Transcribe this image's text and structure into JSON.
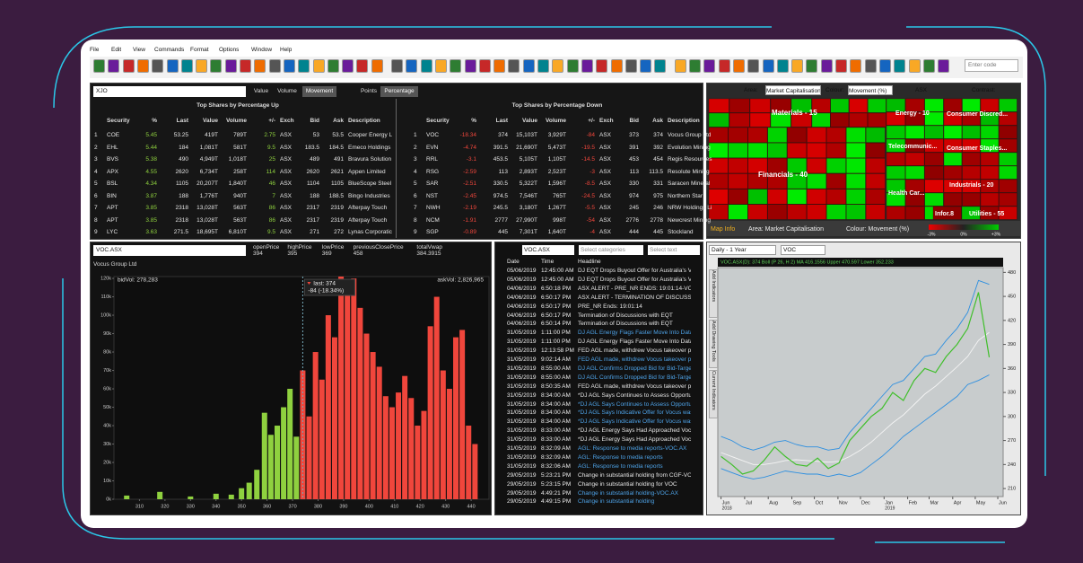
{
  "menu": [
    "File",
    "Edit",
    "View",
    "Commands",
    "Format",
    "Options",
    "Window",
    "Help"
  ],
  "toolbar": {
    "search_placeholder": "Enter code"
  },
  "watchlist": {
    "code": "XJO",
    "sort_tabs": [
      "Value",
      "Volume",
      "Movement"
    ],
    "mode_tabs": [
      "Points",
      "Percentage"
    ],
    "columns": [
      "Security",
      "%",
      "Last",
      "Value",
      "Volume",
      "+/-",
      "Exch",
      "Bid",
      "Ask",
      "Description"
    ],
    "up": {
      "title": "Top Shares by Percentage Up",
      "color": "#8fd13f",
      "rows": [
        [
          1,
          "COE",
          5.45,
          53.25,
          "419T",
          "789T",
          2.75,
          "ASX",
          53,
          53.5,
          "Cooper Energy L"
        ],
        [
          2,
          "EHL",
          5.44,
          184,
          "1,081T",
          "581T",
          9.5,
          "ASX",
          183.5,
          184.5,
          "Emeco Holdings"
        ],
        [
          3,
          "BVS",
          5.38,
          490,
          "4,949T",
          "1,018T",
          25,
          "ASX",
          489,
          491,
          "Bravura Solution"
        ],
        [
          4,
          "APX",
          4.55,
          2620,
          "6,734T",
          "258T",
          114,
          "ASX",
          2620,
          2621,
          "Appen Limited"
        ],
        [
          5,
          "BSL",
          4.34,
          1105,
          "20,207T",
          "1,840T",
          46,
          "ASX",
          1104,
          1105,
          "BlueScope Steel"
        ],
        [
          6,
          "BIN",
          3.87,
          188,
          "1,776T",
          "940T",
          7,
          "ASX",
          188,
          188.5,
          "Bingo Industries"
        ],
        [
          7,
          "APT",
          3.85,
          2318,
          "13,028T",
          "563T",
          86,
          "ASX",
          2317,
          2319,
          "Afterpay Touch"
        ],
        [
          8,
          "APT",
          3.85,
          2318,
          "13,028T",
          "563T",
          86,
          "ASX",
          2317,
          2319,
          "Afterpay Touch"
        ],
        [
          9,
          "LYC",
          3.63,
          271.5,
          "18,695T",
          "6,810T",
          9.5,
          "ASX",
          271,
          272,
          "Lynas Corporatic"
        ]
      ]
    },
    "down": {
      "title": "Top Shares by Percentage Down",
      "color": "#f0463c",
      "rows": [
        [
          1,
          "VOC",
          -18.34,
          374,
          "15,103T",
          "3,929T",
          -84,
          "ASX",
          373,
          374,
          "Vocus Group Ltd"
        ],
        [
          2,
          "EVN",
          -4.74,
          391.5,
          "21,690T",
          "5,473T",
          -19.5,
          "ASX",
          391,
          392,
          "Evolution Mining"
        ],
        [
          3,
          "RRL",
          -3.1,
          453.5,
          "5,105T",
          "1,105T",
          -14.5,
          "ASX",
          453,
          454,
          "Regis Resources"
        ],
        [
          4,
          "RSG",
          -2.59,
          113,
          "2,893T",
          "2,523T",
          -3,
          "ASX",
          113,
          113.5,
          "Resolute Mining"
        ],
        [
          5,
          "SAR",
          -2.51,
          330.5,
          "5,322T",
          "1,596T",
          -8.5,
          "ASX",
          330,
          331,
          "Saracen Mineral"
        ],
        [
          6,
          "NST",
          -2.45,
          974.5,
          "7,546T",
          "765T",
          -24.5,
          "ASX",
          974,
          975,
          "Northern Star"
        ],
        [
          7,
          "NWH",
          -2.19,
          245.5,
          "3,180T",
          "1,267T",
          -5.5,
          "ASX",
          245,
          246,
          "NRW Holdings Li"
        ],
        [
          8,
          "NCM",
          -1.91,
          2777,
          "27,990T",
          "998T",
          -54,
          "ASX",
          2776,
          2778,
          "Newcrest Mining"
        ],
        [
          9,
          "SGP",
          -0.89,
          445,
          "7,301T",
          "1,640T",
          -4,
          "ASX",
          444,
          445,
          "Stockland"
        ]
      ]
    }
  },
  "heatmap": {
    "area_label": "Area:",
    "area": "Market Capitalisation",
    "colour_label": "Colour:",
    "colour": "Movement (%)",
    "exchange": "ASX",
    "contrast": "Contrast:",
    "sectors": [
      "Materials - 15",
      "Energy - 10",
      "Consumer Discred...",
      "Financials - 40",
      "Telecommunic...",
      "Consumer Staples...",
      "Health Car...",
      "Industrials - 20",
      "Infor.8",
      "Utilities - 55"
    ],
    "info": "Map Info",
    "info_area": "Area: Market Capitalisation",
    "info_colour": "Colour: Movement (%)",
    "scale": [
      "-3%",
      "0%",
      "+3%"
    ]
  },
  "chart_data": [
    {
      "type": "bar",
      "symbol": "VOC.ASX",
      "subtitle": "Vocus Group Ltd",
      "stats": [
        {
          "label": "openPrice",
          "value": 394
        },
        {
          "label": "highPrice",
          "value": 395
        },
        {
          "label": "lowPrice",
          "value": 369
        },
        {
          "label": "previousClosePrice",
          "value": 458
        },
        {
          "label": "totalVwap",
          "value": 384.3915
        }
      ],
      "annotations": {
        "bid": "bidVol: 278,283",
        "ask": "askVol: 2,826,965",
        "last": "last: 374",
        "change": "-84 (-18.34%)"
      },
      "series": [
        {
          "color": "#8fd13f",
          "x": [
            305,
            318,
            330,
            340,
            346,
            350,
            353,
            356,
            359,
            361.5,
            364,
            366.5,
            369,
            371.5
          ],
          "values": [
            2000,
            4000,
            1500,
            3000,
            2500,
            6000,
            9000,
            16000,
            47000,
            35000,
            40000,
            50000,
            60000,
            34000
          ]
        },
        {
          "color": "#f0463c",
          "x": [
            374,
            376.5,
            379,
            381.5,
            384,
            386.5,
            389,
            391.5,
            394,
            396.5,
            399,
            401.5,
            404,
            406.5,
            409,
            411.5,
            414,
            416.5,
            419,
            421.5,
            424,
            426.5,
            429,
            431.5,
            434,
            436.5,
            439,
            441.5
          ],
          "values": [
            70000,
            45000,
            80000,
            65000,
            100000,
            88000,
            125000,
            115000,
            120000,
            104000,
            90000,
            80000,
            72000,
            56000,
            50000,
            58000,
            67000,
            55000,
            40000,
            48000,
            94000,
            110000,
            70000,
            60000,
            88000,
            92000,
            40000,
            30000
          ]
        }
      ],
      "xlim": [
        300,
        447
      ],
      "xticks": [
        310,
        320,
        330,
        340,
        350,
        360,
        370,
        380,
        390,
        400,
        410,
        420,
        430,
        440
      ],
      "ylim": [
        0,
        121000
      ],
      "yticks": [
        {
          "value": 0,
          "label": "0k"
        },
        {
          "value": 10000,
          "label": "10k"
        },
        {
          "value": 20000,
          "label": "20k"
        },
        {
          "value": 30000,
          "label": "30k"
        },
        {
          "value": 40000,
          "label": "40k"
        },
        {
          "value": 50000,
          "label": "50k"
        },
        {
          "value": 60000,
          "label": "60k"
        },
        {
          "value": 70000,
          "label": "70k"
        },
        {
          "value": 80000,
          "label": "80k"
        },
        {
          "value": 90000,
          "label": "90k"
        },
        {
          "value": 100000,
          "label": "100k"
        },
        {
          "value": 110000,
          "label": "110k"
        },
        {
          "value": 120000,
          "label": "120k"
        }
      ]
    },
    {
      "type": "line",
      "period": "Daily - 1 Year",
      "symbol": "VOC",
      "annotation": "VOC.ASX(D): 374  Boll (P 26, H 2)  MA 416.1556  Upper 470.597  Lower 352.233",
      "side_tabs": [
        "Add Indicators",
        "Add Drawing Tools",
        "Current Indicators"
      ],
      "x": [
        0,
        1,
        2,
        3,
        4,
        5,
        6,
        7,
        8,
        9,
        10,
        11,
        12,
        13,
        14,
        15,
        16,
        17,
        18,
        19,
        20,
        21,
        22,
        23,
        24,
        25
      ],
      "series": [
        {
          "color": "#2d8fe0",
          "values": [
            275,
            270,
            262,
            258,
            262,
            268,
            270,
            265,
            262,
            262,
            258,
            260,
            280,
            295,
            310,
            325,
            340,
            345,
            360,
            375,
            378,
            395,
            410,
            430,
            470,
            465
          ]
        },
        {
          "color": "#2d8fe0",
          "values": [
            235,
            230,
            225,
            222,
            224,
            228,
            232,
            230,
            228,
            228,
            225,
            228,
            225,
            230,
            240,
            250,
            262,
            275,
            285,
            295,
            305,
            315,
            325,
            340,
            345,
            352
          ]
        },
        {
          "color": "#f4f4f4",
          "values": [
            255,
            250,
            245,
            240,
            240,
            242,
            245,
            246,
            245,
            244,
            243,
            244,
            250,
            258,
            268,
            280,
            292,
            302,
            315,
            328,
            338,
            350,
            362,
            375,
            395,
            405
          ]
        },
        {
          "color": "#3fbf2a",
          "values": [
            250,
            240,
            228,
            232,
            245,
            262,
            250,
            240,
            238,
            248,
            235,
            242,
            270,
            285,
            300,
            310,
            330,
            320,
            345,
            360,
            355,
            375,
            390,
            410,
            455,
            374
          ]
        }
      ],
      "xlim": [
        -0.3,
        26.3
      ],
      "xticks": [
        {
          "value": 0,
          "label": "Jun"
        },
        {
          "value": 2.2,
          "label": "Jul"
        },
        {
          "value": 4.4,
          "label": "Aug"
        },
        {
          "value": 6.6,
          "label": "Sep"
        },
        {
          "value": 8.7,
          "label": "Oct"
        },
        {
          "value": 10.9,
          "label": "Nov"
        },
        {
          "value": 13,
          "label": "Dec"
        },
        {
          "value": 15.2,
          "label": "Jan"
        },
        {
          "value": 17.4,
          "label": "Feb"
        },
        {
          "value": 19.4,
          "label": "Mar"
        },
        {
          "value": 21.6,
          "label": "Apr"
        },
        {
          "value": 23.7,
          "label": "May"
        },
        {
          "value": 25.8,
          "label": "Jun"
        }
      ],
      "x_sublabels": [
        {
          "value": 0,
          "label": "2018"
        },
        {
          "value": 15.2,
          "label": "2019"
        }
      ],
      "ylim": [
        200,
        486
      ],
      "yticks": [
        210,
        240,
        270,
        300,
        330,
        360,
        390,
        420,
        450,
        480
      ]
    }
  ],
  "news": {
    "code": "VOC.ASX",
    "category_placeholder": "Select categories",
    "text_placeholder": "Select text",
    "columns": [
      "Date",
      "Time",
      "Headline"
    ],
    "rows": [
      [
        "05/06/2019",
        "12:45:00 AM",
        "DJ EQT Drops Buyout Offer for Australia's Vocus"
      ],
      [
        "05/06/2019",
        "12:45:00 AM",
        "DJ EQT Drops Buyout Offer for Australia's Vocus"
      ],
      [
        "04/06/2019",
        "6:50:18 PM",
        "ASX ALERT - PRE_NR ENDS: 19:01:14-VOC"
      ],
      [
        "04/06/2019",
        "6:50:17 PM",
        "ASX ALERT - TERMINATION OF DISCUSSIONS"
      ],
      [
        "04/06/2019",
        "6:50:17 PM",
        "PRE_NR Ends: 19:01:14"
      ],
      [
        "04/06/2019",
        "6:50:17 PM",
        "Termination of Discussions with EQT"
      ],
      [
        "04/06/2019",
        "6:50:14 PM",
        "Termination of Discussions with EQT"
      ],
      [
        "31/05/2019",
        "1:11:00 PM",
        "DJ AGL Energy Flags Faster Move Into Data"
      ],
      [
        "31/05/2019",
        "1:11:00 PM",
        "DJ AGL Energy Flags Faster Move Into Data"
      ],
      [
        "31/05/2019",
        "12:13:58 PM",
        "FED AGL made, withdrew Vocus takeover p"
      ],
      [
        "31/05/2019",
        "9:02:14 AM",
        "FED AGL made, withdrew Vocus takeover p"
      ],
      [
        "31/05/2019",
        "8:55:00 AM",
        "DJ AGL Confirms Dropped Bid for Bid-Target"
      ],
      [
        "31/05/2019",
        "8:55:00 AM",
        "DJ AGL Confirms Dropped Bid for Bid-Target"
      ],
      [
        "31/05/2019",
        "8:50:35 AM",
        "FED AGL made, withdrew Vocus takeover p"
      ],
      [
        "31/05/2019",
        "8:34:00 AM",
        "*DJ AGL Says Continues to Assess Opportu"
      ],
      [
        "31/05/2019",
        "8:34:00 AM",
        "*DJ AGL Says Continues to Assess Opportu"
      ],
      [
        "31/05/2019",
        "8:34:00 AM",
        "*DJ AGL Says Indicative Offer for Vocus was"
      ],
      [
        "31/05/2019",
        "8:34:00 AM",
        "*DJ AGL Says Indicative Offer for Vocus was"
      ],
      [
        "31/05/2019",
        "8:33:00 AM",
        "*DJ AGL Energy Says Had Approached Vocu"
      ],
      [
        "31/05/2019",
        "8:33:00 AM",
        "*DJ AGL Energy Says Had Approached Vocu"
      ],
      [
        "31/05/2019",
        "8:32:09 AM",
        "AGL: Response to media reports-VOC.AX"
      ],
      [
        "31/05/2019",
        "8:32:09 AM",
        "AGL: Response to media reports"
      ],
      [
        "31/05/2019",
        "8:32:06 AM",
        "AGL: Response to media reports"
      ],
      [
        "29/05/2019",
        "5:23:21 PM",
        "Change in substantial holding from CGF-VO"
      ],
      [
        "29/05/2019",
        "5:23:15 PM",
        "Change in substantial holding for VOC"
      ],
      [
        "29/05/2019",
        "4:49:21 PM",
        "Change in substantial holding-VOC.AX"
      ],
      [
        "29/05/2019",
        "4:49:15 PM",
        "Change in substantial holding"
      ]
    ]
  }
}
